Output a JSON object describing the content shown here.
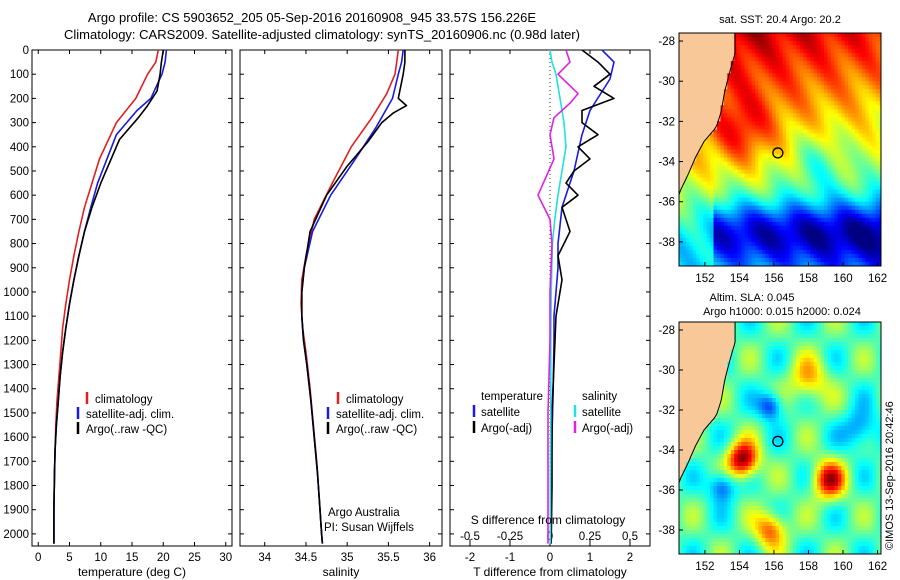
{
  "title_line1": "Argo profile: CS 5903652_205 05-Sep-2016 20160908_945 33.57S 156.226E",
  "title_line2": "Climatology: CARS2009. Satellite-adjusted climatology: synTS_20160906.nc (0.98d later)",
  "credit": "©IMOS 13-Sep-2016 20:42:46",
  "colors": {
    "climatology": "#e02020",
    "satellite": "#1a1ae0",
    "argo": "#000000",
    "sat_salinity": "#20e0e0",
    "argo_salinity": "#e020e0",
    "land": "#f8c898"
  },
  "chart_data": [
    {
      "id": "temperature",
      "type": "line",
      "xlabel": "temperature (deg C)",
      "ylabel": "",
      "xlim": [
        -1,
        31
      ],
      "ylim": [
        2050,
        0
      ],
      "xticks": [
        "0",
        "5",
        "10",
        "15",
        "20",
        "25",
        "30"
      ],
      "xtick_values": [
        0,
        5,
        10,
        15,
        20,
        25,
        30
      ],
      "yticks": [
        "0",
        "100",
        "200",
        "300",
        "400",
        "500",
        "600",
        "700",
        "800",
        "900",
        "1000",
        "1100",
        "1200",
        "1300",
        "1400",
        "1500",
        "1600",
        "1700",
        "1800",
        "1900",
        "2000"
      ],
      "ytick_values": [
        0,
        100,
        200,
        300,
        400,
        500,
        600,
        700,
        800,
        900,
        1000,
        1100,
        1200,
        1300,
        1400,
        1500,
        1600,
        1700,
        1800,
        1900,
        2000
      ],
      "legend": [
        "climatology",
        "satellite-adj. clim.",
        "Argo(..raw -QC)"
      ],
      "series": [
        {
          "name": "climatology",
          "color": "#e02020",
          "x": [
            19.2,
            18.8,
            17.5,
            15.6,
            12.5,
            9.8,
            8.6,
            7.4,
            6.5,
            5.7,
            5.0,
            4.4,
            3.9,
            3.6,
            3.3,
            3.0,
            2.8,
            2.7,
            2.6,
            2.5,
            2.5
          ],
          "y": [
            0,
            50,
            100,
            200,
            300,
            450,
            550,
            650,
            750,
            850,
            950,
            1050,
            1150,
            1250,
            1350,
            1450,
            1550,
            1650,
            1750,
            1900,
            2040
          ]
        },
        {
          "name": "satellite-adj. clim.",
          "color": "#1a1ae0",
          "x": [
            20.5,
            20.3,
            19.8,
            18.0,
            15.8,
            12.5,
            9.5,
            8.4,
            7.4,
            6.5,
            5.7,
            5.0,
            4.4,
            3.9,
            3.5,
            3.2,
            2.9,
            2.7,
            2.6,
            2.5,
            2.5
          ],
          "y": [
            0,
            50,
            100,
            200,
            250,
            350,
            550,
            650,
            750,
            850,
            950,
            1050,
            1150,
            1250,
            1350,
            1450,
            1550,
            1650,
            1750,
            1900,
            2040
          ]
        },
        {
          "name": "Argo(..raw -QC)",
          "color": "#000000",
          "x": [
            20.0,
            19.7,
            19.5,
            19.0,
            17.5,
            16.0,
            13.0,
            10.0,
            8.6,
            7.4,
            6.5,
            5.7,
            5.0,
            4.4,
            3.9,
            3.5,
            3.2,
            2.9,
            2.7,
            2.6,
            2.5,
            2.5
          ],
          "y": [
            0,
            50,
            100,
            170,
            230,
            280,
            370,
            550,
            650,
            750,
            850,
            950,
            1050,
            1150,
            1250,
            1350,
            1450,
            1550,
            1650,
            1750,
            1900,
            2040
          ]
        }
      ]
    },
    {
      "id": "salinity",
      "type": "line",
      "xlabel": "salinity",
      "ylabel": "",
      "xlim": [
        33.7,
        36.15
      ],
      "ylim": [
        2050,
        0
      ],
      "xticks": [
        "34",
        "34.5",
        "35",
        "35.5",
        "36"
      ],
      "xtick_values": [
        34,
        34.5,
        35,
        35.5,
        36
      ],
      "legend": [
        "climatology",
        "satellite-adj. clim.",
        "Argo(..raw -QC)"
      ],
      "annotation_line1": "Argo Australia",
      "annotation_line2": "PI: Susan Wijffels",
      "series": [
        {
          "name": "climatology",
          "color": "#e02020",
          "x": [
            35.62,
            35.6,
            35.58,
            35.48,
            35.3,
            35.05,
            34.82,
            34.6,
            34.5,
            34.45,
            34.44,
            34.46,
            34.5,
            34.55,
            34.59,
            34.63,
            34.66,
            34.68,
            34.7
          ],
          "y": [
            0,
            50,
            100,
            180,
            280,
            400,
            550,
            700,
            850,
            950,
            1050,
            1150,
            1250,
            1400,
            1550,
            1700,
            1850,
            1950,
            2040
          ]
        },
        {
          "name": "satellite-adj. clim.",
          "color": "#1a1ae0",
          "x": [
            35.68,
            35.66,
            35.62,
            35.55,
            35.35,
            35.1,
            34.8,
            34.58,
            34.48,
            34.45,
            34.45,
            34.47,
            34.51,
            34.56,
            34.6,
            34.64,
            34.67,
            34.69,
            34.7
          ],
          "y": [
            0,
            50,
            100,
            200,
            320,
            450,
            600,
            750,
            900,
            1000,
            1100,
            1200,
            1300,
            1450,
            1600,
            1750,
            1900,
            2000,
            2040
          ]
        },
        {
          "name": "Argo(..raw -QC)",
          "color": "#000000",
          "x": [
            35.7,
            35.7,
            35.68,
            35.62,
            35.72,
            35.56,
            35.42,
            35.25,
            35.0,
            34.75,
            34.55,
            34.48,
            34.45,
            34.45,
            34.47,
            34.51,
            34.56,
            34.6,
            34.64,
            34.67,
            34.69,
            34.7
          ],
          "y": [
            0,
            50,
            100,
            200,
            230,
            260,
            300,
            380,
            480,
            600,
            750,
            900,
            1000,
            1100,
            1200,
            1300,
            1450,
            1600,
            1750,
            1900,
            2000,
            2040
          ]
        }
      ]
    },
    {
      "id": "difference",
      "type": "line",
      "xlabel": "T difference from climatology",
      "xlabel_top": "S difference from climatology",
      "ylabel": "",
      "xlim": [
        -2.5,
        2.5
      ],
      "ylim": [
        2050,
        0
      ],
      "xticks": [
        "-2",
        "-1",
        "0",
        "1",
        "2"
      ],
      "xtick_values": [
        -2,
        -1,
        0,
        1,
        2
      ],
      "xticks_top": [
        "-0.5",
        "-0.25",
        "0",
        "0.25",
        "0.5"
      ],
      "xtick_top_values": [
        -0.5,
        -0.25,
        0,
        0.25,
        0.5
      ],
      "legend_left_title": "temperature",
      "legend_right_title": "salinity",
      "legend": [
        "satellite",
        "Argo(-adj)",
        "satellite",
        "Argo(-adj)"
      ],
      "series": [
        {
          "name": "satellite",
          "color": "#1a1ae0",
          "x": [
            1.3,
            1.6,
            1.5,
            1.0,
            0.8,
            0.6,
            0.3,
            0.2,
            0.2,
            0.15,
            0.1,
            0.1,
            0.08,
            0.05,
            0.03,
            0.02
          ],
          "y": [
            0,
            50,
            120,
            250,
            350,
            500,
            650,
            800,
            900,
            1000,
            1100,
            1200,
            1400,
            1600,
            1800,
            2040
          ]
        },
        {
          "name": "Argo(-adj)",
          "color": "#000000",
          "x": [
            0.8,
            1.2,
            1.5,
            1.1,
            1.6,
            0.8,
            0.8,
            1.2,
            0.7,
            1.0,
            0.6,
            0.4,
            0.7,
            0.3,
            0.5,
            0.2,
            0.3,
            0.15,
            0.1,
            0.05,
            0.05,
            0.03
          ],
          "y": [
            0,
            50,
            100,
            150,
            200,
            250,
            300,
            350,
            400,
            450,
            500,
            550,
            600,
            650,
            750,
            850,
            950,
            1100,
            1300,
            1500,
            1800,
            2040
          ]
        },
        {
          "name": "satellite",
          "color": "#20e0e0",
          "x": [
            0.0,
            0.05,
            0.15,
            0.25,
            0.35,
            0.4,
            0.3,
            0.2,
            0.12,
            0.06,
            0.03,
            0.02,
            0.02,
            0.01,
            0.01
          ],
          "y": [
            0,
            50,
            100,
            200,
            300,
            400,
            500,
            600,
            700,
            800,
            1000,
            1200,
            1500,
            1800,
            2040
          ]
        },
        {
          "name": "Argo(-adj)",
          "color": "#e020e0",
          "x": [
            0.4,
            0.5,
            0.2,
            0.7,
            0.5,
            0.1,
            0.0,
            0.1,
            -0.3,
            0.0,
            0.05,
            0.0,
            0.0,
            -0.05,
            -0.05
          ],
          "y": [
            0,
            50,
            100,
            180,
            220,
            280,
            350,
            450,
            600,
            700,
            800,
            1000,
            1200,
            1500,
            2040
          ]
        }
      ]
    },
    {
      "id": "sst-map",
      "type": "heatmap",
      "title": "sat. SST: 20.4  Argo: 20.2",
      "xlim": [
        150.5,
        162.2
      ],
      "ylim": [
        -39.2,
        -27.6
      ],
      "xticks": [
        "152",
        "154",
        "156",
        "158",
        "160",
        "162"
      ],
      "xtick_values": [
        152,
        154,
        156,
        158,
        160,
        162
      ],
      "yticks": [
        "-28",
        "-30",
        "-32",
        "-34",
        "-36",
        "-38"
      ],
      "ytick_values": [
        -28,
        -30,
        -32,
        -34,
        -36,
        -38
      ],
      "argo_position": {
        "lon": 156.226,
        "lat": -33.57
      }
    },
    {
      "id": "sla-map",
      "type": "heatmap",
      "title": "Altim. SLA: 0.045",
      "subtitle": "Argo h1000: 0.015 h2000: 0.024",
      "xlim": [
        150.5,
        162.2
      ],
      "ylim": [
        -39.2,
        -27.6
      ],
      "xticks": [
        "152",
        "154",
        "156",
        "158",
        "160",
        "162"
      ],
      "xtick_values": [
        152,
        154,
        156,
        158,
        160,
        162
      ],
      "yticks": [
        "-28",
        "-30",
        "-32",
        "-34",
        "-36",
        "-38"
      ],
      "ytick_values": [
        -28,
        -30,
        -32,
        -34,
        -36,
        -38
      ],
      "argo_position": {
        "lon": 156.226,
        "lat": -33.57
      }
    }
  ]
}
